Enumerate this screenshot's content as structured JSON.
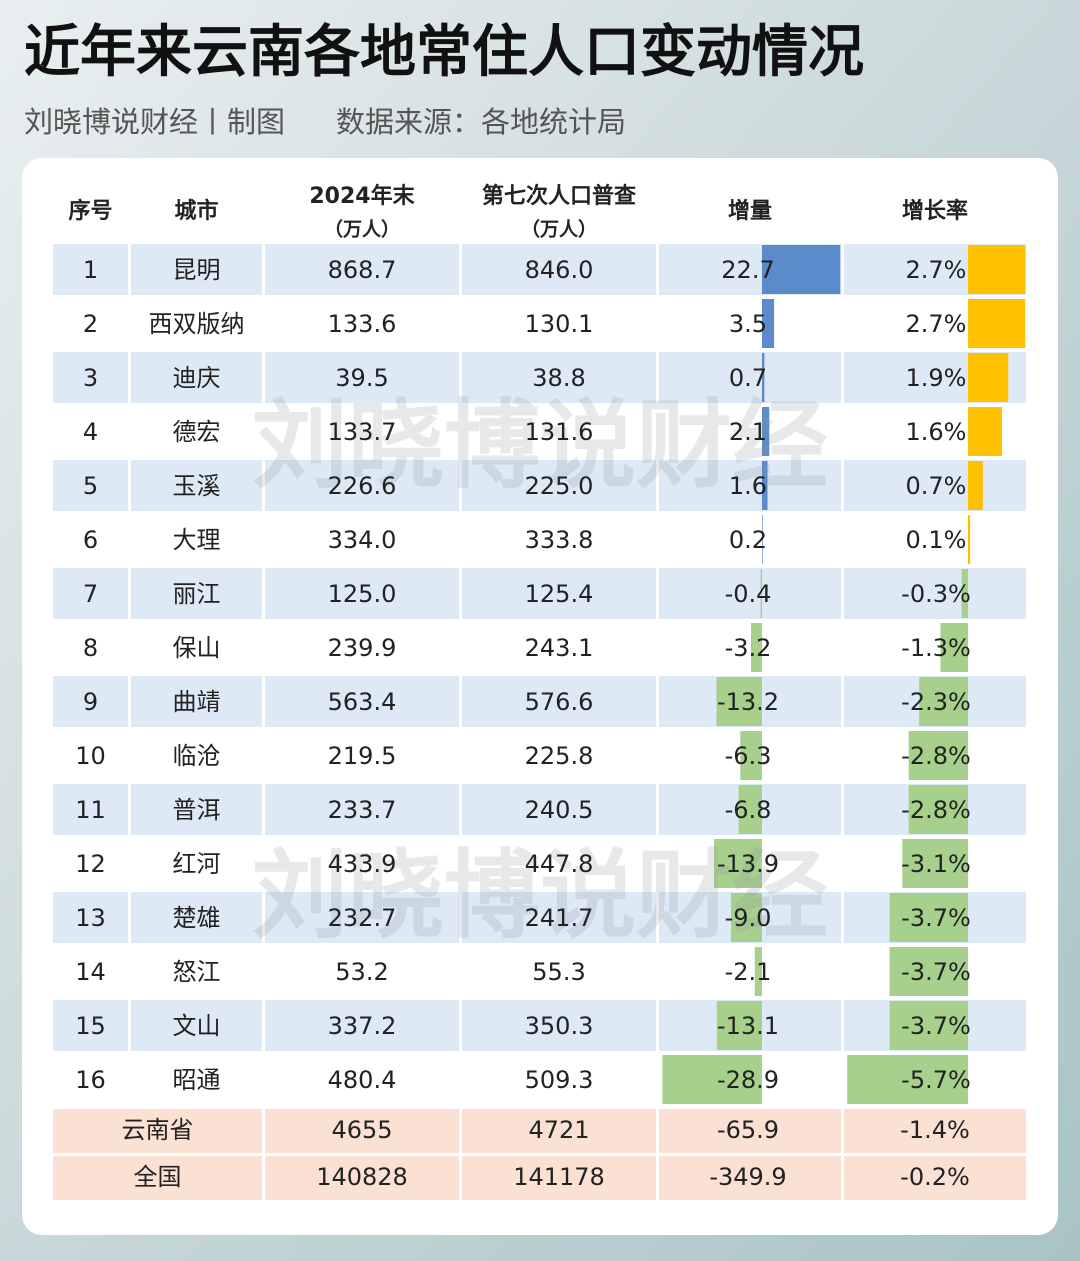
{
  "header": {
    "title": "近年来云南各地常住人口变动情况",
    "credit": "刘晓博说财经丨制图",
    "source": "数据来源：各地统计局"
  },
  "watermark": "刘晓博说财经",
  "bar_colors": {
    "increase": "#5b8bcb",
    "growth": "#ffc000",
    "decrease": "#a8d08d"
  },
  "table": {
    "columns": [
      "序号",
      "城市",
      {
        "label": "2024年末",
        "unit": "（万人）"
      },
      {
        "label": "第七次人口普查",
        "unit": "（万人）"
      },
      "增量",
      "增长率"
    ],
    "rows": [
      [
        1,
        "昆明",
        "868.7",
        "846.0",
        {
          "value": 22.7,
          "label": "22.7"
        },
        {
          "value": 2.7,
          "label": "2.7%"
        }
      ],
      [
        2,
        "西双版纳",
        "133.6",
        "130.1",
        {
          "value": 3.5,
          "label": "3.5"
        },
        {
          "value": 2.7,
          "label": "2.7%"
        }
      ],
      [
        3,
        "迪庆",
        "39.5",
        "38.8",
        {
          "value": 0.7,
          "label": "0.7"
        },
        {
          "value": 1.9,
          "label": "1.9%"
        }
      ],
      [
        4,
        "德宏",
        "133.7",
        "131.6",
        {
          "value": 2.1,
          "label": "2.1"
        },
        {
          "value": 1.6,
          "label": "1.6%"
        }
      ],
      [
        5,
        "玉溪",
        "226.6",
        "225.0",
        {
          "value": 1.6,
          "label": "1.6"
        },
        {
          "value": 0.7,
          "label": "0.7%"
        }
      ],
      [
        6,
        "大理",
        "334.0",
        "333.8",
        {
          "value": 0.2,
          "label": "0.2"
        },
        {
          "value": 0.1,
          "label": "0.1%"
        }
      ],
      [
        7,
        "丽江",
        "125.0",
        "125.4",
        {
          "value": -0.4,
          "label": "-0.4"
        },
        {
          "value": -0.3,
          "label": "-0.3%"
        }
      ],
      [
        8,
        "保山",
        "239.9",
        "243.1",
        {
          "value": -3.2,
          "label": "-3.2"
        },
        {
          "value": -1.3,
          "label": "-1.3%"
        }
      ],
      [
        9,
        "曲靖",
        "563.4",
        "576.6",
        {
          "value": -13.2,
          "label": "-13.2"
        },
        {
          "value": -2.3,
          "label": "-2.3%"
        }
      ],
      [
        10,
        "临沧",
        "219.5",
        "225.8",
        {
          "value": -6.3,
          "label": "-6.3"
        },
        {
          "value": -2.8,
          "label": "-2.8%"
        }
      ],
      [
        11,
        "普洱",
        "233.7",
        "240.5",
        {
          "value": -6.8,
          "label": "-6.8"
        },
        {
          "value": -2.8,
          "label": "-2.8%"
        }
      ],
      [
        12,
        "红河",
        "433.9",
        "447.8",
        {
          "value": -13.9,
          "label": "-13.9"
        },
        {
          "value": -3.1,
          "label": "-3.1%"
        }
      ],
      [
        13,
        "楚雄",
        "232.7",
        "241.7",
        {
          "value": -9.0,
          "label": "-9.0"
        },
        {
          "value": -3.7,
          "label": "-3.7%"
        }
      ],
      [
        14,
        "怒江",
        "53.2",
        "55.3",
        {
          "value": -2.1,
          "label": "-2.1"
        },
        {
          "value": -3.7,
          "label": "-3.7%"
        }
      ],
      [
        15,
        "文山",
        "337.2",
        "350.3",
        {
          "value": -13.1,
          "label": "-13.1"
        },
        {
          "value": -3.7,
          "label": "-3.7%"
        }
      ],
      [
        16,
        "昭通",
        "480.4",
        "509.3",
        {
          "value": -28.9,
          "label": "-28.9"
        },
        {
          "value": -5.7,
          "label": "-5.7%"
        }
      ]
    ],
    "totals": [
      [
        "云南省",
        "4655",
        "4721",
        "-65.9",
        "-1.4%"
      ],
      [
        "全国",
        "140828",
        "141178",
        "-349.9",
        "-0.2%"
      ]
    ]
  }
}
